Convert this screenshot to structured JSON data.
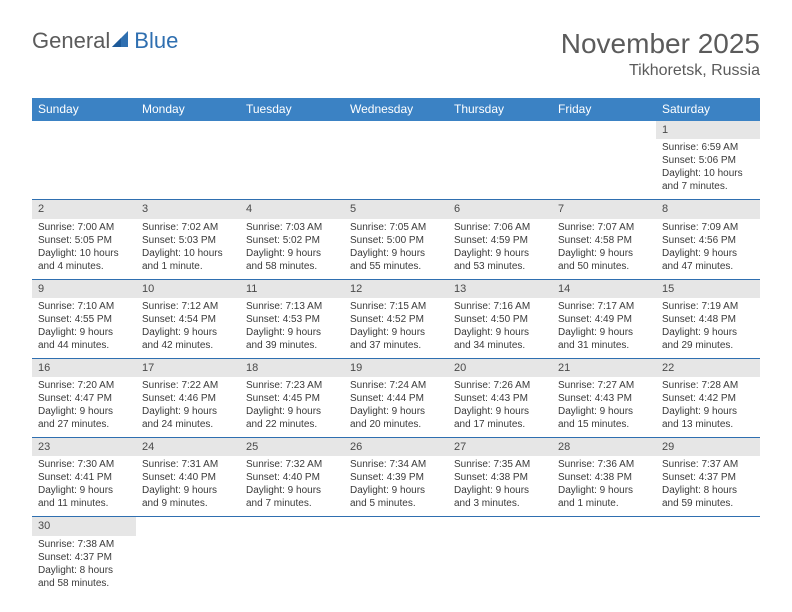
{
  "logo": {
    "part1": "General",
    "part2": "Blue"
  },
  "title": "November 2025",
  "location": "Tikhoretsk, Russia",
  "day_headers": [
    "Sunday",
    "Monday",
    "Tuesday",
    "Wednesday",
    "Thursday",
    "Friday",
    "Saturday"
  ],
  "colors": {
    "header_bg": "#3b82c4",
    "header_text": "#ffffff",
    "daynum_bg": "#e6e6e6",
    "row_border": "#2f6fb0",
    "title_color": "#5b5b5b"
  },
  "weeks": [
    [
      null,
      null,
      null,
      null,
      null,
      null,
      {
        "n": "1",
        "sunrise": "Sunrise: 6:59 AM",
        "sunset": "Sunset: 5:06 PM",
        "daylight": "Daylight: 10 hours and 7 minutes."
      }
    ],
    [
      {
        "n": "2",
        "sunrise": "Sunrise: 7:00 AM",
        "sunset": "Sunset: 5:05 PM",
        "daylight": "Daylight: 10 hours and 4 minutes."
      },
      {
        "n": "3",
        "sunrise": "Sunrise: 7:02 AM",
        "sunset": "Sunset: 5:03 PM",
        "daylight": "Daylight: 10 hours and 1 minute."
      },
      {
        "n": "4",
        "sunrise": "Sunrise: 7:03 AM",
        "sunset": "Sunset: 5:02 PM",
        "daylight": "Daylight: 9 hours and 58 minutes."
      },
      {
        "n": "5",
        "sunrise": "Sunrise: 7:05 AM",
        "sunset": "Sunset: 5:00 PM",
        "daylight": "Daylight: 9 hours and 55 minutes."
      },
      {
        "n": "6",
        "sunrise": "Sunrise: 7:06 AM",
        "sunset": "Sunset: 4:59 PM",
        "daylight": "Daylight: 9 hours and 53 minutes."
      },
      {
        "n": "7",
        "sunrise": "Sunrise: 7:07 AM",
        "sunset": "Sunset: 4:58 PM",
        "daylight": "Daylight: 9 hours and 50 minutes."
      },
      {
        "n": "8",
        "sunrise": "Sunrise: 7:09 AM",
        "sunset": "Sunset: 4:56 PM",
        "daylight": "Daylight: 9 hours and 47 minutes."
      }
    ],
    [
      {
        "n": "9",
        "sunrise": "Sunrise: 7:10 AM",
        "sunset": "Sunset: 4:55 PM",
        "daylight": "Daylight: 9 hours and 44 minutes."
      },
      {
        "n": "10",
        "sunrise": "Sunrise: 7:12 AM",
        "sunset": "Sunset: 4:54 PM",
        "daylight": "Daylight: 9 hours and 42 minutes."
      },
      {
        "n": "11",
        "sunrise": "Sunrise: 7:13 AM",
        "sunset": "Sunset: 4:53 PM",
        "daylight": "Daylight: 9 hours and 39 minutes."
      },
      {
        "n": "12",
        "sunrise": "Sunrise: 7:15 AM",
        "sunset": "Sunset: 4:52 PM",
        "daylight": "Daylight: 9 hours and 37 minutes."
      },
      {
        "n": "13",
        "sunrise": "Sunrise: 7:16 AM",
        "sunset": "Sunset: 4:50 PM",
        "daylight": "Daylight: 9 hours and 34 minutes."
      },
      {
        "n": "14",
        "sunrise": "Sunrise: 7:17 AM",
        "sunset": "Sunset: 4:49 PM",
        "daylight": "Daylight: 9 hours and 31 minutes."
      },
      {
        "n": "15",
        "sunrise": "Sunrise: 7:19 AM",
        "sunset": "Sunset: 4:48 PM",
        "daylight": "Daylight: 9 hours and 29 minutes."
      }
    ],
    [
      {
        "n": "16",
        "sunrise": "Sunrise: 7:20 AM",
        "sunset": "Sunset: 4:47 PM",
        "daylight": "Daylight: 9 hours and 27 minutes."
      },
      {
        "n": "17",
        "sunrise": "Sunrise: 7:22 AM",
        "sunset": "Sunset: 4:46 PM",
        "daylight": "Daylight: 9 hours and 24 minutes."
      },
      {
        "n": "18",
        "sunrise": "Sunrise: 7:23 AM",
        "sunset": "Sunset: 4:45 PM",
        "daylight": "Daylight: 9 hours and 22 minutes."
      },
      {
        "n": "19",
        "sunrise": "Sunrise: 7:24 AM",
        "sunset": "Sunset: 4:44 PM",
        "daylight": "Daylight: 9 hours and 20 minutes."
      },
      {
        "n": "20",
        "sunrise": "Sunrise: 7:26 AM",
        "sunset": "Sunset: 4:43 PM",
        "daylight": "Daylight: 9 hours and 17 minutes."
      },
      {
        "n": "21",
        "sunrise": "Sunrise: 7:27 AM",
        "sunset": "Sunset: 4:43 PM",
        "daylight": "Daylight: 9 hours and 15 minutes."
      },
      {
        "n": "22",
        "sunrise": "Sunrise: 7:28 AM",
        "sunset": "Sunset: 4:42 PM",
        "daylight": "Daylight: 9 hours and 13 minutes."
      }
    ],
    [
      {
        "n": "23",
        "sunrise": "Sunrise: 7:30 AM",
        "sunset": "Sunset: 4:41 PM",
        "daylight": "Daylight: 9 hours and 11 minutes."
      },
      {
        "n": "24",
        "sunrise": "Sunrise: 7:31 AM",
        "sunset": "Sunset: 4:40 PM",
        "daylight": "Daylight: 9 hours and 9 minutes."
      },
      {
        "n": "25",
        "sunrise": "Sunrise: 7:32 AM",
        "sunset": "Sunset: 4:40 PM",
        "daylight": "Daylight: 9 hours and 7 minutes."
      },
      {
        "n": "26",
        "sunrise": "Sunrise: 7:34 AM",
        "sunset": "Sunset: 4:39 PM",
        "daylight": "Daylight: 9 hours and 5 minutes."
      },
      {
        "n": "27",
        "sunrise": "Sunrise: 7:35 AM",
        "sunset": "Sunset: 4:38 PM",
        "daylight": "Daylight: 9 hours and 3 minutes."
      },
      {
        "n": "28",
        "sunrise": "Sunrise: 7:36 AM",
        "sunset": "Sunset: 4:38 PM",
        "daylight": "Daylight: 9 hours and 1 minute."
      },
      {
        "n": "29",
        "sunrise": "Sunrise: 7:37 AM",
        "sunset": "Sunset: 4:37 PM",
        "daylight": "Daylight: 8 hours and 59 minutes."
      }
    ],
    [
      {
        "n": "30",
        "sunrise": "Sunrise: 7:38 AM",
        "sunset": "Sunset: 4:37 PM",
        "daylight": "Daylight: 8 hours and 58 minutes."
      },
      null,
      null,
      null,
      null,
      null,
      null
    ]
  ]
}
